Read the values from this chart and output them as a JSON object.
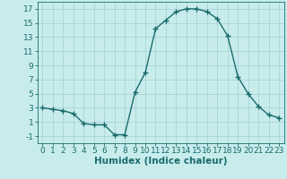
{
  "x": [
    0,
    1,
    2,
    3,
    4,
    5,
    6,
    7,
    8,
    9,
    10,
    11,
    12,
    13,
    14,
    15,
    16,
    17,
    18,
    19,
    20,
    21,
    22,
    23
  ],
  "y": [
    3,
    2.8,
    2.6,
    2.2,
    0.8,
    0.6,
    0.6,
    -0.8,
    -0.8,
    5.2,
    8.0,
    14.2,
    15.4,
    16.6,
    17.0,
    17.0,
    16.6,
    15.6,
    13.2,
    7.4,
    5.0,
    3.2,
    2.0,
    1.6
  ],
  "line_color": "#1a6b6b",
  "marker": "+",
  "marker_size": 4,
  "bg_color": "#c8ecec",
  "grid_color": "#a8d4d4",
  "xlabel": "Humidex (Indice chaleur)",
  "xlim": [
    -0.5,
    23.5
  ],
  "ylim": [
    -2,
    18
  ],
  "yticks": [
    -1,
    1,
    3,
    5,
    7,
    9,
    11,
    13,
    15,
    17
  ],
  "xticks": [
    0,
    1,
    2,
    3,
    4,
    5,
    6,
    7,
    8,
    9,
    10,
    11,
    12,
    13,
    14,
    15,
    16,
    17,
    18,
    19,
    20,
    21,
    22,
    23
  ],
  "tick_color": "#1a6b6b",
  "label_color": "#1a6b6b",
  "xlabel_fontsize": 7.5,
  "tick_fontsize": 6.5
}
